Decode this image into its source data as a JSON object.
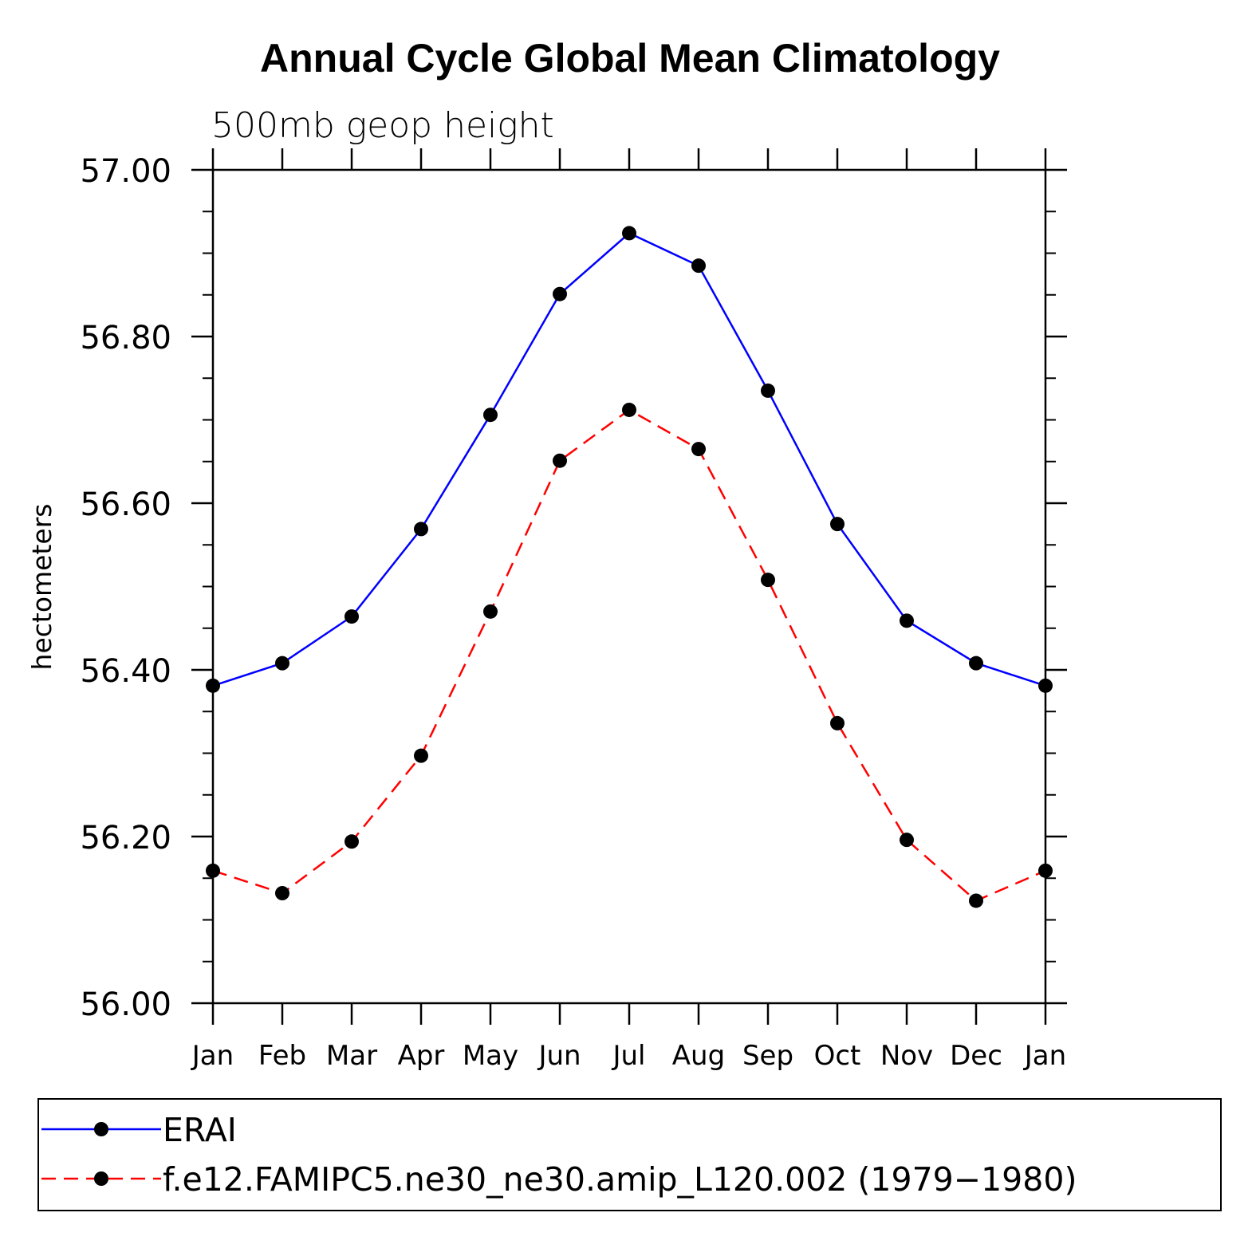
{
  "chart_data": {
    "type": "line",
    "title": "Annual Cycle Global Mean Climatology",
    "subtitle": "500mb geop height",
    "ylabel": "hectometers",
    "xlabel": "",
    "categories": [
      "Jan",
      "Feb",
      "Mar",
      "Apr",
      "May",
      "Jun",
      "Jul",
      "Aug",
      "Sep",
      "Oct",
      "Nov",
      "Dec",
      "Jan"
    ],
    "ylim": [
      56.0,
      57.0
    ],
    "yticks": [
      {
        "value": 56.0,
        "label": "56.00"
      },
      {
        "value": 56.2,
        "label": "56.20"
      },
      {
        "value": 56.4,
        "label": "56.40"
      },
      {
        "value": 56.6,
        "label": "56.60"
      },
      {
        "value": 56.8,
        "label": "56.80"
      },
      {
        "value": 57.0,
        "label": "57.00"
      }
    ],
    "yminor_step": 0.05,
    "grid": false,
    "legend_position": "bottom",
    "series": [
      {
        "name": "ERAI",
        "color": "#0000ff",
        "dash": "solid",
        "marker": "circle",
        "values": [
          56.381,
          56.408,
          56.464,
          56.569,
          56.706,
          56.851,
          56.924,
          56.885,
          56.735,
          56.575,
          56.459,
          56.408,
          56.381
        ]
      },
      {
        "name": "f.e12.FAMIPC5.ne30_ne30.amip_L120.002 (1979−1980)",
        "color": "#ff0000",
        "dash": "dashed",
        "marker": "circle",
        "values": [
          56.159,
          56.132,
          56.194,
          56.297,
          56.47,
          56.651,
          56.712,
          56.665,
          56.508,
          56.336,
          56.196,
          56.123,
          56.159
        ]
      }
    ]
  }
}
